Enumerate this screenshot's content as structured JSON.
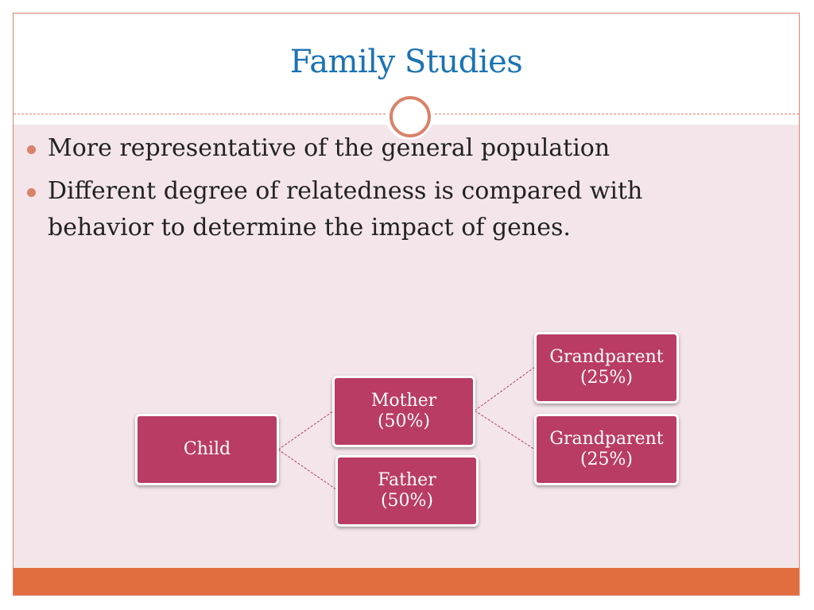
{
  "slide": {
    "title": "Family Studies",
    "bullets": [
      "More representative of the general population",
      "Different degree of relatedness is compared with behavior to determine the impact of genes."
    ]
  },
  "diagram": {
    "child": {
      "label": "Child"
    },
    "mother": {
      "label": "Mother",
      "share": "(50%)"
    },
    "father": {
      "label": "Father",
      "share": "(50%)"
    },
    "grandparent_1": {
      "label": "Grandparent",
      "share": "(25%)"
    },
    "grandparent_2": {
      "label": "Grandparent",
      "share": "(25%)"
    },
    "colors": {
      "node_fill": "#b93c64",
      "connector": "#b93c64",
      "accent": "#d9826a",
      "title": "#1b73b3"
    }
  }
}
